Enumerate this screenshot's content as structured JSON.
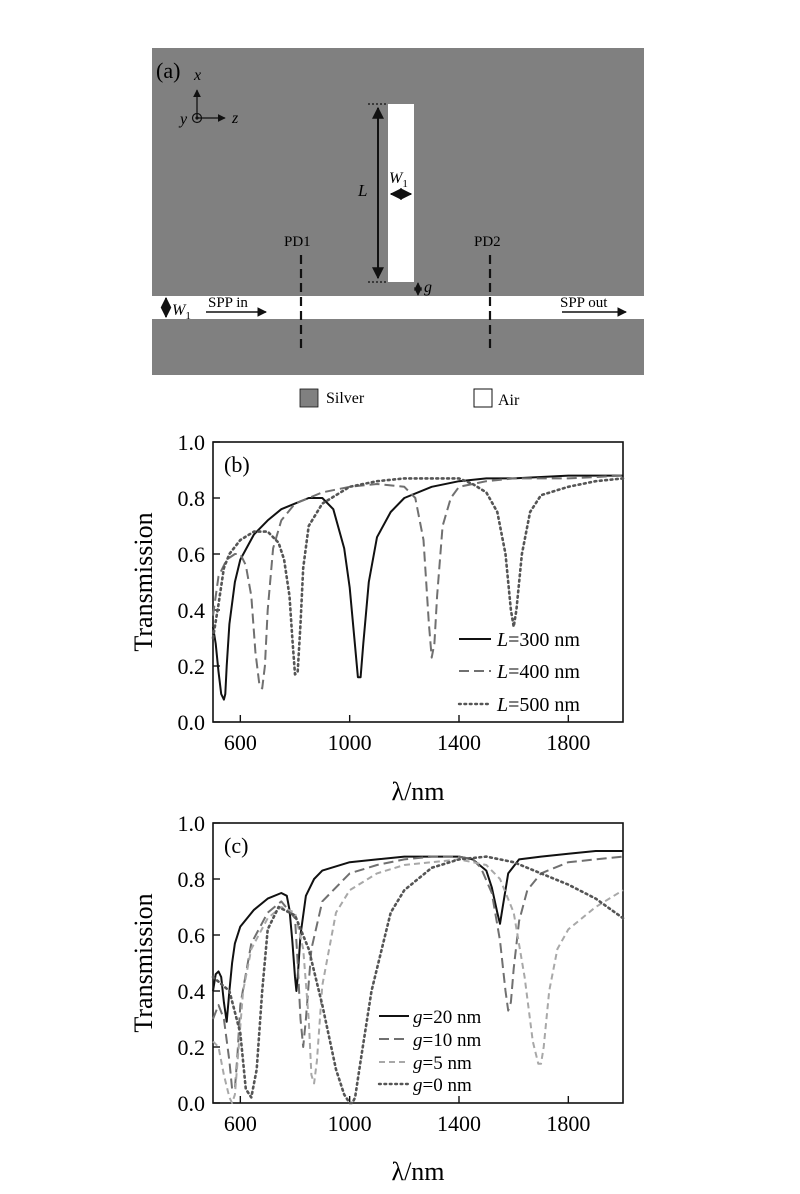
{
  "panel_a": {
    "label": "(a)",
    "axis_x": "x",
    "axis_y": "y",
    "axis_z": "z",
    "dim_L": "L",
    "dim_W": "W",
    "dim_W_sub": "1",
    "dim_g": "g",
    "pd1": "PD1",
    "pd2": "PD2",
    "spp_in": "SPP in",
    "spp_out": "SPP out",
    "legend_silver": "Silver",
    "legend_air": "Air",
    "colors": {
      "silver": "#808080",
      "air": "#ffffff"
    }
  },
  "chart_data": [
    {
      "type": "line",
      "panel_label": "(b)",
      "xlabel": "λ/nm",
      "ylabel": "Transmission",
      "xlim": [
        500,
        2000
      ],
      "ylim": [
        0.0,
        1.0
      ],
      "xticks": [
        600,
        1000,
        1400,
        1800
      ],
      "yticks": [
        "0.0",
        "0.2",
        "0.4",
        "0.6",
        "0.8",
        "1.0"
      ],
      "legend_position": "lower-right",
      "series": [
        {
          "name": "L=300 nm",
          "param": "L",
          "value": "=300 nm",
          "style": "solid",
          "color": "#111111",
          "x": [
            500,
            510,
            520,
            530,
            540,
            545,
            550,
            560,
            580,
            600,
            650,
            700,
            750,
            800,
            850,
            900,
            940,
            980,
            1000,
            1020,
            1030,
            1040,
            1050,
            1070,
            1100,
            1150,
            1200,
            1300,
            1400,
            1500,
            1600,
            1800,
            2000
          ],
          "y": [
            0.34,
            0.28,
            0.18,
            0.1,
            0.08,
            0.1,
            0.2,
            0.35,
            0.5,
            0.58,
            0.67,
            0.72,
            0.76,
            0.78,
            0.8,
            0.8,
            0.76,
            0.62,
            0.48,
            0.27,
            0.16,
            0.16,
            0.28,
            0.5,
            0.66,
            0.75,
            0.8,
            0.84,
            0.86,
            0.87,
            0.87,
            0.88,
            0.88
          ]
        },
        {
          "name": "L=400 nm",
          "param": "L",
          "value": "=400 nm",
          "style": "dashed",
          "color": "#707070",
          "x": [
            500,
            520,
            550,
            580,
            600,
            620,
            640,
            655,
            670,
            680,
            690,
            700,
            720,
            750,
            800,
            900,
            1000,
            1100,
            1200,
            1240,
            1270,
            1290,
            1300,
            1310,
            1320,
            1340,
            1370,
            1400,
            1500,
            1600,
            1800,
            2000
          ],
          "y": [
            0.38,
            0.52,
            0.58,
            0.6,
            0.6,
            0.56,
            0.45,
            0.25,
            0.13,
            0.12,
            0.2,
            0.4,
            0.62,
            0.72,
            0.78,
            0.82,
            0.84,
            0.85,
            0.84,
            0.8,
            0.65,
            0.35,
            0.23,
            0.28,
            0.45,
            0.7,
            0.8,
            0.84,
            0.86,
            0.87,
            0.87,
            0.88
          ]
        },
        {
          "name": "L=500 nm",
          "param": "L",
          "value": "=500 nm",
          "style": "dotted",
          "color": "#555555",
          "x": [
            500,
            520,
            540,
            560,
            600,
            650,
            700,
            740,
            760,
            780,
            790,
            800,
            810,
            820,
            830,
            850,
            900,
            1000,
            1100,
            1200,
            1300,
            1400,
            1450,
            1500,
            1540,
            1570,
            1590,
            1600,
            1610,
            1630,
            1660,
            1700,
            1800,
            1900,
            2000
          ],
          "y": [
            0.3,
            0.42,
            0.55,
            0.6,
            0.65,
            0.68,
            0.68,
            0.64,
            0.58,
            0.45,
            0.3,
            0.17,
            0.18,
            0.35,
            0.55,
            0.7,
            0.78,
            0.84,
            0.86,
            0.87,
            0.87,
            0.87,
            0.85,
            0.82,
            0.75,
            0.6,
            0.4,
            0.34,
            0.4,
            0.6,
            0.75,
            0.81,
            0.84,
            0.86,
            0.87
          ]
        }
      ]
    },
    {
      "type": "line",
      "panel_label": "(c)",
      "xlabel": "λ/nm",
      "ylabel": "Transmission",
      "xlim": [
        500,
        2000
      ],
      "ylim": [
        0.0,
        1.0
      ],
      "xticks": [
        600,
        1000,
        1400,
        1800
      ],
      "yticks": [
        "0.0",
        "0.2",
        "0.4",
        "0.6",
        "0.8",
        "1.0"
      ],
      "legend_position": "lower-center",
      "series": [
        {
          "name": "g=20 nm",
          "param": "g",
          "value": "=20 nm",
          "style": "solid",
          "color": "#111111",
          "x": [
            500,
            510,
            520,
            530,
            540,
            550,
            560,
            570,
            580,
            600,
            650,
            700,
            750,
            770,
            780,
            790,
            800,
            805,
            810,
            820,
            840,
            870,
            900,
            1000,
            1100,
            1200,
            1300,
            1400,
            1450,
            1500,
            1520,
            1540,
            1550,
            1560,
            1580,
            1620,
            1700,
            1800,
            1900,
            2000
          ],
          "y": [
            0.4,
            0.46,
            0.47,
            0.45,
            0.36,
            0.29,
            0.4,
            0.5,
            0.57,
            0.63,
            0.69,
            0.73,
            0.75,
            0.74,
            0.69,
            0.58,
            0.45,
            0.4,
            0.45,
            0.6,
            0.74,
            0.8,
            0.83,
            0.86,
            0.87,
            0.88,
            0.88,
            0.88,
            0.87,
            0.83,
            0.77,
            0.68,
            0.64,
            0.7,
            0.82,
            0.87,
            0.88,
            0.89,
            0.9,
            0.9
          ]
        },
        {
          "name": "g=10 nm",
          "param": "g",
          "value": "=10 nm",
          "style": "dashed",
          "color": "#707070",
          "x": [
            500,
            520,
            540,
            560,
            570,
            580,
            590,
            600,
            640,
            700,
            750,
            800,
            810,
            820,
            830,
            840,
            860,
            900,
            1000,
            1100,
            1200,
            1300,
            1400,
            1450,
            1480,
            1520,
            1550,
            1570,
            1580,
            1590,
            1600,
            1620,
            1650,
            1700,
            1800,
            1900,
            2000
          ],
          "y": [
            0.3,
            0.35,
            0.3,
            0.15,
            0.05,
            0.05,
            0.18,
            0.35,
            0.57,
            0.68,
            0.72,
            0.66,
            0.5,
            0.3,
            0.2,
            0.3,
            0.55,
            0.72,
            0.82,
            0.85,
            0.87,
            0.88,
            0.88,
            0.87,
            0.84,
            0.75,
            0.58,
            0.4,
            0.33,
            0.36,
            0.48,
            0.65,
            0.76,
            0.82,
            0.86,
            0.87,
            0.88
          ]
        },
        {
          "name": "g=5 nm",
          "param": "g",
          "value": "=5 nm",
          "style": "dashed-short",
          "color": "#a8a8a8",
          "x": [
            500,
            520,
            540,
            560,
            570,
            580,
            590,
            610,
            640,
            700,
            750,
            800,
            830,
            850,
            860,
            870,
            880,
            900,
            950,
            1000,
            1100,
            1200,
            1300,
            1400,
            1500,
            1550,
            1600,
            1640,
            1670,
            1690,
            1700,
            1710,
            1730,
            1760,
            1800,
            1900,
            2000
          ],
          "y": [
            0.22,
            0.2,
            0.1,
            0.02,
            0.0,
            0.03,
            0.15,
            0.4,
            0.55,
            0.66,
            0.7,
            0.68,
            0.55,
            0.3,
            0.1,
            0.07,
            0.15,
            0.42,
            0.68,
            0.76,
            0.82,
            0.85,
            0.86,
            0.87,
            0.85,
            0.8,
            0.68,
            0.45,
            0.22,
            0.14,
            0.14,
            0.2,
            0.4,
            0.55,
            0.62,
            0.7,
            0.76
          ]
        },
        {
          "name": "g=0 nm",
          "param": "g",
          "value": "=0 nm",
          "style": "dotted",
          "color": "#555555",
          "x": [
            500,
            560,
            600,
            620,
            640,
            660,
            680,
            700,
            740,
            800,
            850,
            900,
            950,
            980,
            1000,
            1010,
            1020,
            1040,
            1080,
            1150,
            1200,
            1300,
            1400,
            1500,
            1600,
            1700,
            1800,
            1900,
            2000
          ],
          "y": [
            0.45,
            0.4,
            0.25,
            0.05,
            0.02,
            0.12,
            0.4,
            0.62,
            0.7,
            0.67,
            0.55,
            0.35,
            0.12,
            0.03,
            0.0,
            0.0,
            0.02,
            0.15,
            0.4,
            0.68,
            0.76,
            0.84,
            0.87,
            0.88,
            0.86,
            0.82,
            0.78,
            0.73,
            0.66
          ]
        }
      ]
    }
  ]
}
